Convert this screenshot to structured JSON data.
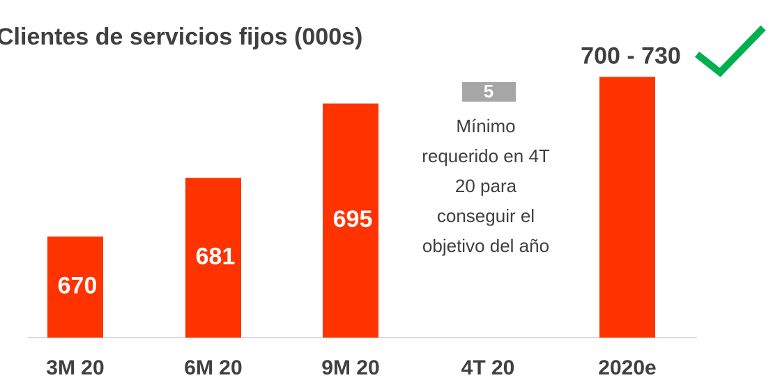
{
  "chart_data": {
    "type": "bar",
    "title": "Clientes de servicios fijos (000s)",
    "categories": [
      "3M 20",
      "6M 20",
      "9M 20",
      "4T 20",
      "2020e"
    ],
    "values": [
      670,
      681,
      695,
      null,
      700
    ],
    "value_labels": [
      "670",
      "681",
      "695",
      null,
      "700 - 730"
    ],
    "color": "#ff3300",
    "ylim": [
      651,
      710
    ],
    "annotation": {
      "value": 5,
      "lines": [
        "Mínimo",
        "requerido en 4T",
        "20 para",
        "conseguir el",
        "objetivo del año"
      ]
    }
  }
}
